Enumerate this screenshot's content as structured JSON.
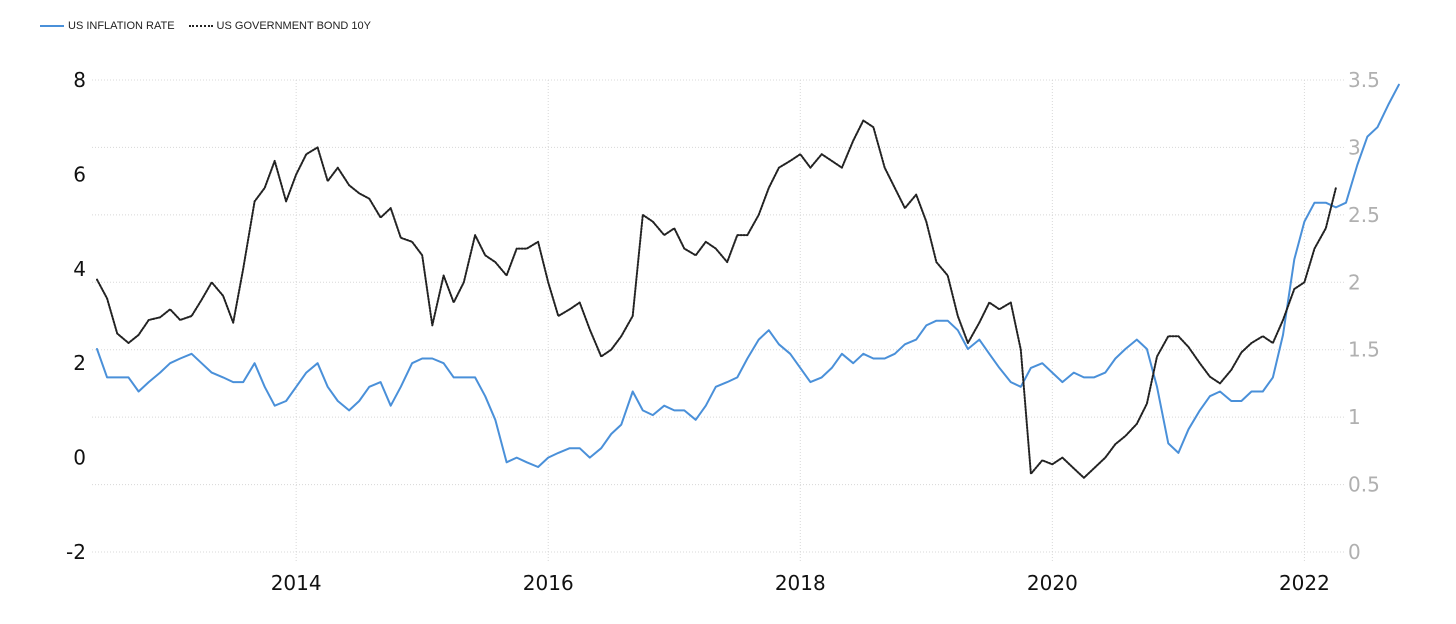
{
  "legend": {
    "series1": "US INFLATION RATE",
    "series2": "US GOVERNMENT BOND 10Y"
  },
  "colors": {
    "inflation": "#4a90d9",
    "bond": "#222222",
    "grid": "#d8d8d8"
  },
  "chart_data": {
    "type": "line",
    "grid": true,
    "legend_position": "top-left",
    "x_range": [
      2012.38,
      2022.33
    ],
    "x_ticks": [
      "2014",
      "2016",
      "2018",
      "2020",
      "2022"
    ],
    "y_left": {
      "range": [
        -2,
        8
      ],
      "ticks": [
        "-2",
        "0",
        "2",
        "4",
        "6",
        "8"
      ]
    },
    "y_right": {
      "range": [
        0,
        3.5
      ],
      "ticks": [
        "0",
        "0.5",
        "1",
        "1.5",
        "2",
        "2.5",
        "3",
        "3.5"
      ]
    },
    "series": [
      {
        "name": "US INFLATION RATE",
        "axis": "left",
        "points": [
          [
            2012.42,
            2.3
          ],
          [
            2012.5,
            1.7
          ],
          [
            2012.58,
            1.7
          ],
          [
            2012.67,
            1.7
          ],
          [
            2012.75,
            1.4
          ],
          [
            2012.83,
            1.6
          ],
          [
            2012.92,
            1.8
          ],
          [
            2013.0,
            2.0
          ],
          [
            2013.08,
            2.1
          ],
          [
            2013.17,
            2.2
          ],
          [
            2013.25,
            2.0
          ],
          [
            2013.33,
            1.8
          ],
          [
            2013.42,
            1.7
          ],
          [
            2013.5,
            1.6
          ],
          [
            2013.58,
            1.6
          ],
          [
            2013.67,
            2.0
          ],
          [
            2013.75,
            1.5
          ],
          [
            2013.83,
            1.1
          ],
          [
            2013.92,
            1.2
          ],
          [
            2014.0,
            1.5
          ],
          [
            2014.08,
            1.8
          ],
          [
            2014.17,
            2.0
          ],
          [
            2014.25,
            1.5
          ],
          [
            2014.33,
            1.2
          ],
          [
            2014.42,
            1.0
          ],
          [
            2014.5,
            1.2
          ],
          [
            2014.58,
            1.5
          ],
          [
            2014.67,
            1.6
          ],
          [
            2014.75,
            1.1
          ],
          [
            2014.83,
            1.5
          ],
          [
            2014.92,
            2.0
          ],
          [
            2015.0,
            2.1
          ],
          [
            2015.08,
            2.1
          ],
          [
            2015.17,
            2.0
          ],
          [
            2015.25,
            1.7
          ],
          [
            2015.33,
            1.7
          ],
          [
            2015.42,
            1.7
          ],
          [
            2015.5,
            1.3
          ],
          [
            2015.58,
            0.8
          ],
          [
            2015.67,
            -0.1
          ],
          [
            2015.75,
            0.0
          ],
          [
            2015.83,
            -0.1
          ],
          [
            2015.92,
            -0.2
          ],
          [
            2016.0,
            0.0
          ],
          [
            2016.08,
            0.1
          ],
          [
            2016.17,
            0.2
          ],
          [
            2016.25,
            0.2
          ],
          [
            2016.33,
            0.0
          ],
          [
            2016.42,
            0.2
          ],
          [
            2016.5,
            0.5
          ],
          [
            2016.58,
            0.7
          ],
          [
            2016.67,
            1.4
          ],
          [
            2016.75,
            1.0
          ],
          [
            2016.83,
            0.9
          ],
          [
            2016.92,
            1.1
          ],
          [
            2017.0,
            1.0
          ],
          [
            2017.08,
            1.0
          ],
          [
            2017.17,
            0.8
          ],
          [
            2017.25,
            1.1
          ],
          [
            2017.33,
            1.5
          ],
          [
            2017.42,
            1.6
          ],
          [
            2017.5,
            1.7
          ],
          [
            2017.58,
            2.1
          ],
          [
            2017.67,
            2.5
          ],
          [
            2017.75,
            2.7
          ],
          [
            2017.83,
            2.4
          ],
          [
            2017.92,
            2.2
          ],
          [
            2018.0,
            1.9
          ],
          [
            2018.08,
            1.6
          ],
          [
            2018.17,
            1.7
          ],
          [
            2018.25,
            1.9
          ],
          [
            2018.33,
            2.2
          ],
          [
            2018.42,
            2.0
          ],
          [
            2018.5,
            2.2
          ],
          [
            2018.58,
            2.1
          ],
          [
            2018.67,
            2.1
          ],
          [
            2018.75,
            2.2
          ],
          [
            2018.83,
            2.4
          ],
          [
            2018.92,
            2.5
          ],
          [
            2019.0,
            2.8
          ],
          [
            2019.08,
            2.9
          ],
          [
            2019.17,
            2.9
          ],
          [
            2019.25,
            2.7
          ],
          [
            2019.33,
            2.3
          ],
          [
            2019.42,
            2.5
          ],
          [
            2019.5,
            2.2
          ],
          [
            2019.58,
            1.9
          ],
          [
            2019.67,
            1.6
          ],
          [
            2019.75,
            1.5
          ],
          [
            2019.83,
            1.9
          ],
          [
            2019.92,
            2.0
          ],
          [
            2020.0,
            1.8
          ],
          [
            2020.08,
            1.6
          ],
          [
            2020.17,
            1.8
          ],
          [
            2020.25,
            1.7
          ],
          [
            2020.33,
            1.7
          ],
          [
            2020.42,
            1.8
          ],
          [
            2020.5,
            2.1
          ],
          [
            2020.58,
            2.3
          ],
          [
            2020.67,
            2.5
          ],
          [
            2020.75,
            2.3
          ],
          [
            2020.83,
            1.5
          ],
          [
            2020.92,
            0.3
          ],
          [
            2021.0,
            0.1
          ],
          [
            2021.08,
            0.6
          ],
          [
            2021.17,
            1.0
          ],
          [
            2021.25,
            1.3
          ],
          [
            2021.33,
            1.4
          ],
          [
            2021.42,
            1.2
          ],
          [
            2021.5,
            1.2
          ],
          [
            2021.58,
            1.4
          ],
          [
            2021.67,
            1.4
          ],
          [
            2021.75,
            1.7
          ],
          [
            2021.83,
            2.6
          ],
          [
            2021.92,
            4.2
          ],
          [
            2022.0,
            5.0
          ],
          [
            2022.08,
            5.4
          ],
          [
            2022.17,
            5.4
          ],
          [
            2022.25,
            5.3
          ],
          [
            2022.33,
            5.4
          ],
          [
            2022.42,
            6.2
          ],
          [
            2022.5,
            6.8
          ],
          [
            2022.58,
            7.0
          ],
          [
            2022.67,
            7.5
          ],
          [
            2022.75,
            7.9
          ]
        ]
      },
      {
        "name": "US GOVERNMENT BOND 10Y",
        "axis": "right",
        "points": [
          [
            2012.42,
            2.02
          ],
          [
            2012.5,
            1.88
          ],
          [
            2012.58,
            1.62
          ],
          [
            2012.67,
            1.55
          ],
          [
            2012.75,
            1.61
          ],
          [
            2012.83,
            1.72
          ],
          [
            2012.92,
            1.74
          ],
          [
            2013.0,
            1.8
          ],
          [
            2013.08,
            1.72
          ],
          [
            2013.17,
            1.75
          ],
          [
            2013.25,
            1.87
          ],
          [
            2013.33,
            2.0
          ],
          [
            2013.42,
            1.9
          ],
          [
            2013.5,
            1.7
          ],
          [
            2013.58,
            2.1
          ],
          [
            2013.67,
            2.6
          ],
          [
            2013.75,
            2.7
          ],
          [
            2013.83,
            2.9
          ],
          [
            2013.92,
            2.6
          ],
          [
            2014.0,
            2.8
          ],
          [
            2014.08,
            2.95
          ],
          [
            2014.17,
            3.0
          ],
          [
            2014.25,
            2.75
          ],
          [
            2014.33,
            2.85
          ],
          [
            2014.42,
            2.72
          ],
          [
            2014.5,
            2.66
          ],
          [
            2014.58,
            2.62
          ],
          [
            2014.67,
            2.48
          ],
          [
            2014.75,
            2.55
          ],
          [
            2014.83,
            2.33
          ],
          [
            2014.92,
            2.3
          ],
          [
            2015.0,
            2.2
          ],
          [
            2015.08,
            1.68
          ],
          [
            2015.17,
            2.05
          ],
          [
            2015.25,
            1.85
          ],
          [
            2015.33,
            2.0
          ],
          [
            2015.42,
            2.35
          ],
          [
            2015.5,
            2.2
          ],
          [
            2015.58,
            2.15
          ],
          [
            2015.67,
            2.05
          ],
          [
            2015.75,
            2.25
          ],
          [
            2015.83,
            2.25
          ],
          [
            2015.92,
            2.3
          ],
          [
            2016.0,
            2.0
          ],
          [
            2016.08,
            1.75
          ],
          [
            2016.17,
            1.8
          ],
          [
            2016.25,
            1.85
          ],
          [
            2016.33,
            1.65
          ],
          [
            2016.42,
            1.45
          ],
          [
            2016.5,
            1.5
          ],
          [
            2016.58,
            1.6
          ],
          [
            2016.67,
            1.75
          ],
          [
            2016.75,
            2.5
          ],
          [
            2016.83,
            2.45
          ],
          [
            2016.92,
            2.35
          ],
          [
            2017.0,
            2.4
          ],
          [
            2017.08,
            2.25
          ],
          [
            2017.17,
            2.2
          ],
          [
            2017.25,
            2.3
          ],
          [
            2017.33,
            2.25
          ],
          [
            2017.42,
            2.15
          ],
          [
            2017.5,
            2.35
          ],
          [
            2017.58,
            2.35
          ],
          [
            2017.67,
            2.5
          ],
          [
            2017.75,
            2.7
          ],
          [
            2017.83,
            2.85
          ],
          [
            2017.92,
            2.9
          ],
          [
            2018.0,
            2.95
          ],
          [
            2018.08,
            2.85
          ],
          [
            2018.17,
            2.95
          ],
          [
            2018.25,
            2.9
          ],
          [
            2018.33,
            2.85
          ],
          [
            2018.42,
            3.05
          ],
          [
            2018.5,
            3.2
          ],
          [
            2018.58,
            3.15
          ],
          [
            2018.67,
            2.85
          ],
          [
            2018.75,
            2.7
          ],
          [
            2018.83,
            2.55
          ],
          [
            2018.92,
            2.65
          ],
          [
            2019.0,
            2.45
          ],
          [
            2019.08,
            2.15
          ],
          [
            2019.17,
            2.05
          ],
          [
            2019.25,
            1.75
          ],
          [
            2019.33,
            1.55
          ],
          [
            2019.42,
            1.7
          ],
          [
            2019.5,
            1.85
          ],
          [
            2019.58,
            1.8
          ],
          [
            2019.67,
            1.85
          ],
          [
            2019.75,
            1.5
          ],
          [
            2019.83,
            0.58
          ],
          [
            2019.92,
            0.68
          ],
          [
            2020.0,
            0.65
          ],
          [
            2020.08,
            0.7
          ],
          [
            2020.17,
            0.62
          ],
          [
            2020.25,
            0.55
          ],
          [
            2020.33,
            0.62
          ],
          [
            2020.42,
            0.7
          ],
          [
            2020.5,
            0.8
          ],
          [
            2020.58,
            0.86
          ],
          [
            2020.67,
            0.95
          ],
          [
            2020.75,
            1.1
          ],
          [
            2020.83,
            1.45
          ],
          [
            2020.92,
            1.6
          ],
          [
            2021.0,
            1.6
          ],
          [
            2021.08,
            1.52
          ],
          [
            2021.17,
            1.4
          ],
          [
            2021.25,
            1.3
          ],
          [
            2021.33,
            1.25
          ],
          [
            2021.42,
            1.35
          ],
          [
            2021.5,
            1.48
          ],
          [
            2021.58,
            1.55
          ],
          [
            2021.67,
            1.6
          ],
          [
            2021.75,
            1.55
          ],
          [
            2021.83,
            1.72
          ],
          [
            2021.92,
            1.95
          ],
          [
            2022.0,
            2.0
          ],
          [
            2022.08,
            2.25
          ],
          [
            2022.17,
            2.4
          ],
          [
            2022.25,
            2.7
          ]
        ]
      }
    ]
  }
}
